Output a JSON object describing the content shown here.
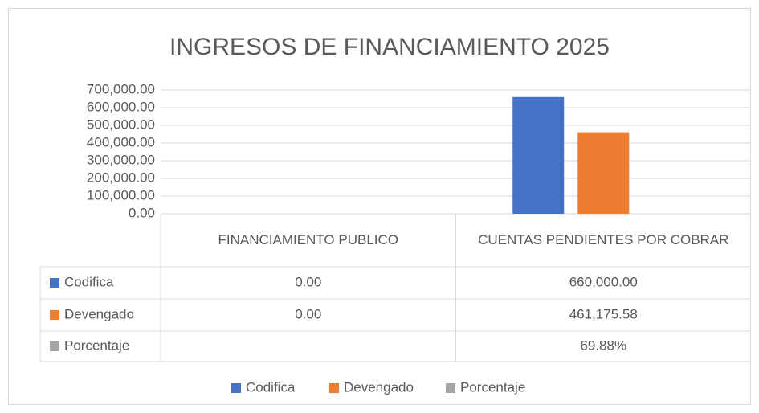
{
  "chart_data": {
    "type": "bar",
    "title": "INGRESOS DE FINANCIAMIENTO 2025",
    "categories": [
      "FINANCIAMIENTO PUBLICO",
      "CUENTAS PENDIENTES POR COBRAR"
    ],
    "series": [
      {
        "name": "Codifica",
        "color": "#4472c4",
        "values": [
          0,
          660000
        ],
        "value_labels": [
          "0.00",
          "660,000.00"
        ]
      },
      {
        "name": "Devengado",
        "color": "#ed7d31",
        "values": [
          0,
          461175.58
        ],
        "value_labels": [
          "0.00",
          "461,175.58"
        ]
      },
      {
        "name": "Porcentaje",
        "color": "#a5a5a5",
        "values": [
          null,
          69.88
        ],
        "value_labels": [
          null,
          "69.88%"
        ]
      }
    ],
    "ylim": [
      0,
      700000
    ],
    "yticks": [
      {
        "value": 0,
        "label": "0.00"
      },
      {
        "value": 100000,
        "label": "100,000.00"
      },
      {
        "value": 200000,
        "label": "200,000.00"
      },
      {
        "value": 300000,
        "label": "300,000.00"
      },
      {
        "value": 400000,
        "label": "400,000.00"
      },
      {
        "value": 500000,
        "label": "500,000.00"
      },
      {
        "value": 600000,
        "label": "600,000.00"
      },
      {
        "value": 700000,
        "label": "700,000.00"
      }
    ],
    "grid": true,
    "legend": "bottom"
  }
}
